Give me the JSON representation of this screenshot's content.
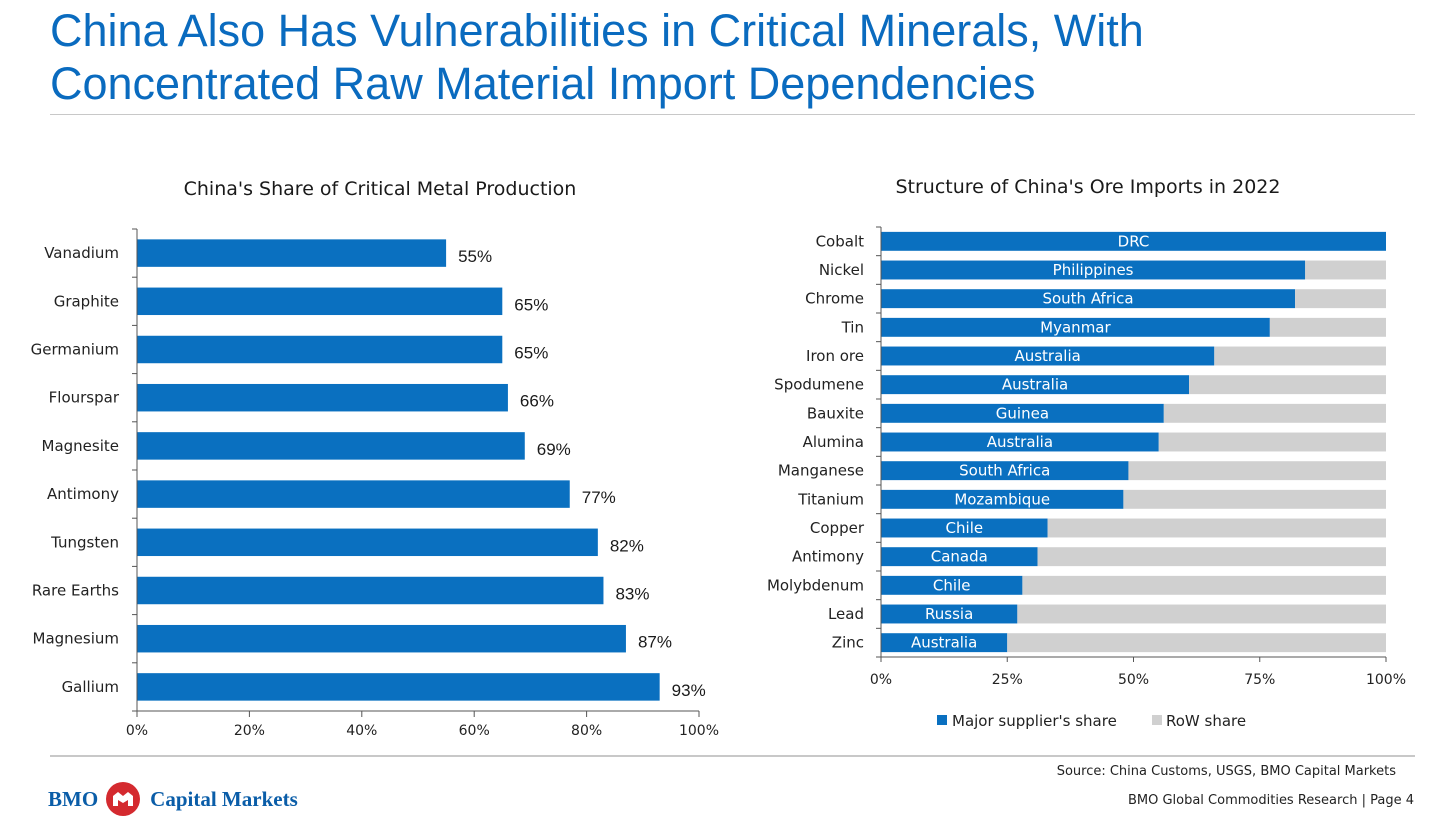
{
  "header": {
    "title_line1": "China Also Has Vulnerabilities in Critical Minerals, With",
    "title_line2": "Concentrated Raw Material Import Dependencies"
  },
  "colors": {
    "accent": "#0a6bbf",
    "bar": "#0a70c0",
    "rest": "#d0d0d0",
    "logo_red": "#d42a2f"
  },
  "chart_data": [
    {
      "type": "bar",
      "orientation": "horizontal",
      "title": "China's Share of Critical Metal Production",
      "categories": [
        "Vanadium",
        "Graphite",
        "Germanium",
        "Flourspar",
        "Magnesite",
        "Antimony",
        "Tungsten",
        "Rare Earths",
        "Magnesium",
        "Gallium"
      ],
      "values": [
        55,
        65,
        65,
        66,
        69,
        77,
        82,
        83,
        87,
        93
      ],
      "data_labels": [
        "55%",
        "65%",
        "65%",
        "66%",
        "69%",
        "77%",
        "82%",
        "83%",
        "87%",
        "93%"
      ],
      "xlim": [
        0,
        100
      ],
      "xticks": [
        "0%",
        "20%",
        "40%",
        "60%",
        "80%",
        "100%"
      ],
      "grid": false
    },
    {
      "type": "bar",
      "orientation": "horizontal",
      "stacked": true,
      "title": "Structure of China's Ore Imports in 2022",
      "categories": [
        "Cobalt",
        "Nickel",
        "Chrome",
        "Tin",
        "Iron ore",
        "Spodumene",
        "Bauxite",
        "Alumina",
        "Manganese",
        "Titanium",
        "Copper",
        "Antimony",
        "Molybdenum",
        "Lead",
        "Zinc"
      ],
      "supplier_labels": [
        "DRC",
        "Philippines",
        "South Africa",
        "Myanmar",
        "Australia",
        "Australia",
        "Guinea",
        "Australia",
        "South Africa",
        "Mozambique",
        "Chile",
        "Canada",
        "Chile",
        "Russia",
        "Australia"
      ],
      "series": [
        {
          "name": "Major supplier's share",
          "values": [
            100,
            84,
            82,
            77,
            66,
            61,
            56,
            55,
            49,
            48,
            33,
            31,
            28,
            27,
            25
          ]
        },
        {
          "name": "RoW share",
          "values": [
            0,
            16,
            18,
            23,
            34,
            39,
            44,
            45,
            51,
            52,
            67,
            69,
            72,
            73,
            75
          ]
        }
      ],
      "xlim": [
        0,
        100
      ],
      "xticks": [
        "0%",
        "25%",
        "50%",
        "75%",
        "100%"
      ],
      "legend": "bottom",
      "grid": false
    }
  ],
  "footer": {
    "source": "Source: China Customs, USGS, BMO Capital Markets",
    "page_info": "BMO Global Commodities Research | Page 4",
    "logo_left": "BMO",
    "logo_right": "Capital Markets"
  }
}
